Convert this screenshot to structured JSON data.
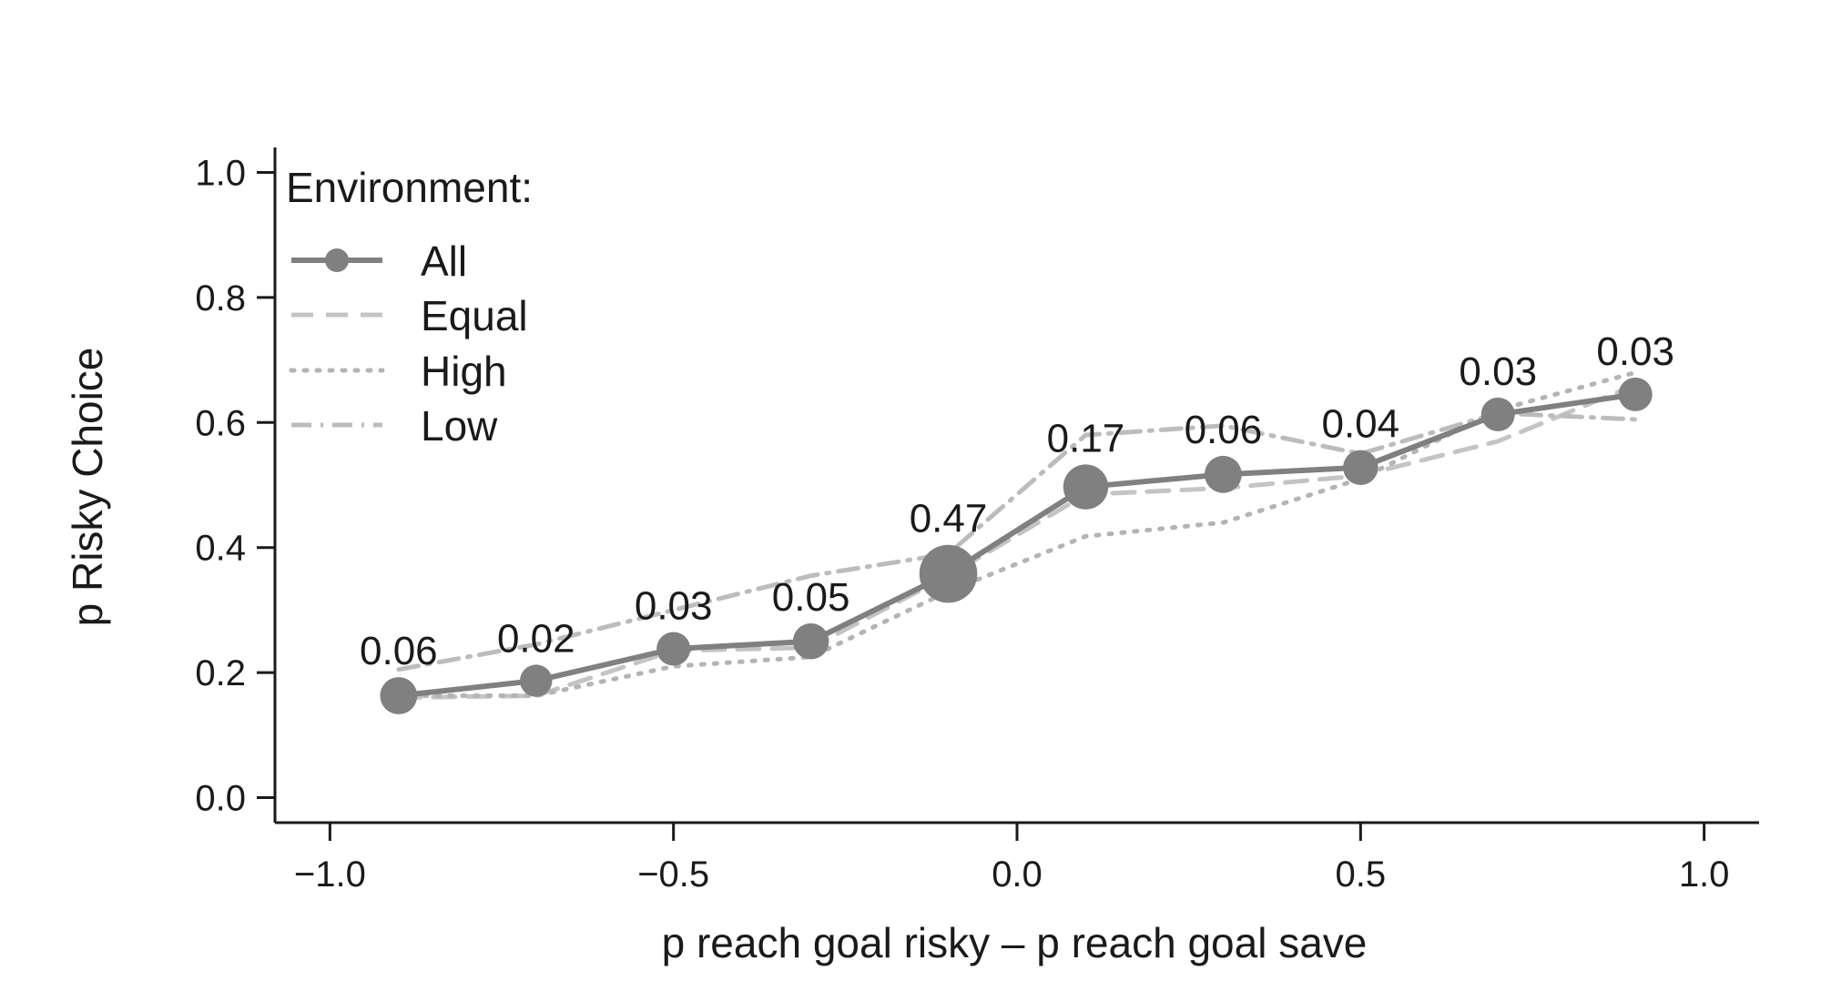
{
  "chart_data": {
    "type": "line",
    "xlabel": "p reach goal risky – p reach goal save",
    "ylabel": "p Risky Choice",
    "xlim": [
      -1.08,
      1.08
    ],
    "ylim": [
      -0.04,
      1.04
    ],
    "x_ticks": [
      -1.0,
      -0.5,
      0.0,
      0.5,
      1.0
    ],
    "x_tick_labels": [
      "−1.0",
      "−0.5",
      "0.0",
      "0.5",
      "1.0"
    ],
    "y_ticks": [
      0.0,
      0.2,
      0.4,
      0.6,
      0.8,
      1.0
    ],
    "y_tick_labels": [
      "0.0",
      "0.2",
      "0.4",
      "0.6",
      "0.8",
      "1.0"
    ],
    "grid": false,
    "legend": {
      "title": "Environment:",
      "position": "top-left"
    },
    "x": [
      -0.9,
      -0.7,
      -0.5,
      -0.3,
      -0.1,
      0.1,
      0.3,
      0.5,
      0.7,
      0.9
    ],
    "point_labels": [
      "0.06",
      "0.02",
      "0.03",
      "0.05",
      "0.47",
      "0.17",
      "0.06",
      "0.04",
      "0.03",
      "0.03"
    ],
    "series": [
      {
        "name": "All",
        "style": "solid-points",
        "color": "#808080",
        "values": [
          0.163,
          0.187,
          0.238,
          0.25,
          0.358,
          0.497,
          0.517,
          0.528,
          0.613,
          0.645
        ]
      },
      {
        "name": "Equal",
        "style": "dashed",
        "color": "#c4c4c4",
        "values": [
          0.16,
          0.163,
          0.235,
          0.24,
          0.355,
          0.485,
          0.495,
          0.515,
          0.57,
          0.66
        ]
      },
      {
        "name": "High",
        "style": "dotted",
        "color": "#b4b4b4",
        "values": [
          0.163,
          0.163,
          0.21,
          0.225,
          0.33,
          0.418,
          0.44,
          0.51,
          0.62,
          0.68
        ]
      },
      {
        "name": "Low",
        "style": "dot-dash",
        "color": "#bcbcbc",
        "values": [
          0.205,
          0.245,
          0.3,
          0.355,
          0.39,
          0.58,
          0.595,
          0.55,
          0.615,
          0.605
        ]
      }
    ]
  }
}
